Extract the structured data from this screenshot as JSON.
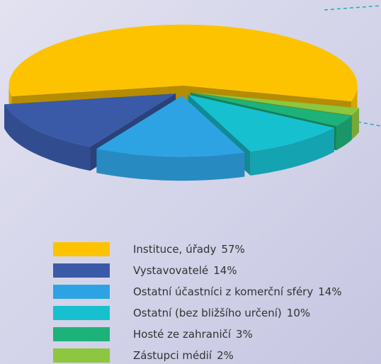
{
  "chart_data": {
    "type": "pie",
    "categories": [
      "Instituce, úřady",
      "Vystavovatelé",
      "Ostatní účastníci z komerční sféry",
      "Ostatní (bez bližšího určení)",
      "Hosté ze zahraničí",
      "Zástupci médií"
    ],
    "values": [
      57,
      14,
      14,
      10,
      3,
      2
    ],
    "value_labels": [
      "57%",
      "14%",
      "14%",
      "10%",
      "3%",
      "2%"
    ],
    "colors": [
      "#fdc300",
      "#3a5aa8",
      "#2ea3e3",
      "#17c0cf",
      "#1db27a",
      "#8dc63f"
    ]
  }
}
